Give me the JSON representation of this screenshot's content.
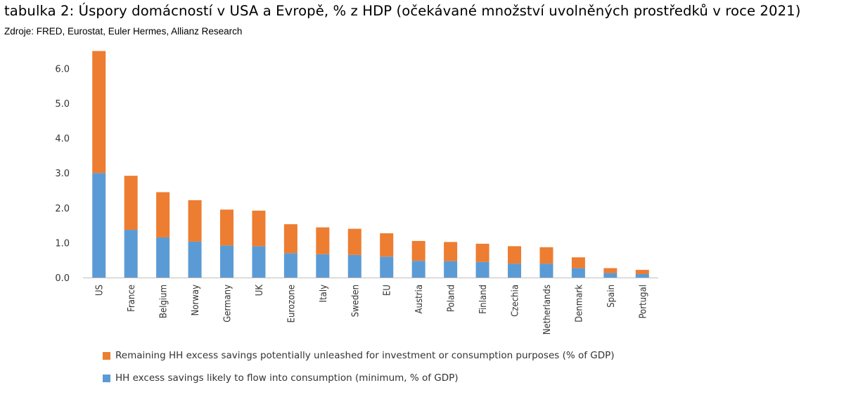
{
  "header": {
    "title": "tabulka 2: Úspory domácností v USA a Evropě, % z HDP (očekávané množství uvolněných prostředků v roce 2021)",
    "source": "Zdroje: FRED, Eurostat, Euler Hermes, Allianz Research"
  },
  "colors": {
    "bottom": "#5b9bd5",
    "top": "#ed7d31",
    "axis": "#bfbfbf"
  },
  "chart_data": {
    "type": "bar",
    "stacked": true,
    "categories": [
      "US",
      "France",
      "Belgium",
      "Norway",
      "Germany",
      "UK",
      "Eurozone",
      "Italy",
      "Sweden",
      "EU",
      "Austria",
      "Poland",
      "Finland",
      "Czechia",
      "Netherlands",
      "Denmark",
      "Spain",
      "Portugal"
    ],
    "series": [
      {
        "name": "HH excess savings likely to flow into consumption (minimum, % of GDP)",
        "values": [
          3.0,
          1.37,
          1.15,
          1.03,
          0.92,
          0.9,
          0.7,
          0.67,
          0.65,
          0.6,
          0.48,
          0.47,
          0.45,
          0.4,
          0.4,
          0.27,
          0.13,
          0.1
        ]
      },
      {
        "name": "Remaining HH excess savings potentially unleashed for investment or consumption purposes (% of GDP)",
        "values": [
          3.5,
          1.55,
          1.3,
          1.19,
          1.03,
          1.02,
          0.83,
          0.77,
          0.75,
          0.67,
          0.57,
          0.55,
          0.52,
          0.5,
          0.47,
          0.31,
          0.14,
          0.12
        ]
      }
    ],
    "ylim": [
      0,
      6.5
    ],
    "yticks": [
      "0.0",
      "1.0",
      "2.0",
      "3.0",
      "4.0",
      "5.0",
      "6.0"
    ],
    "legend": "bottom",
    "grid": false
  }
}
